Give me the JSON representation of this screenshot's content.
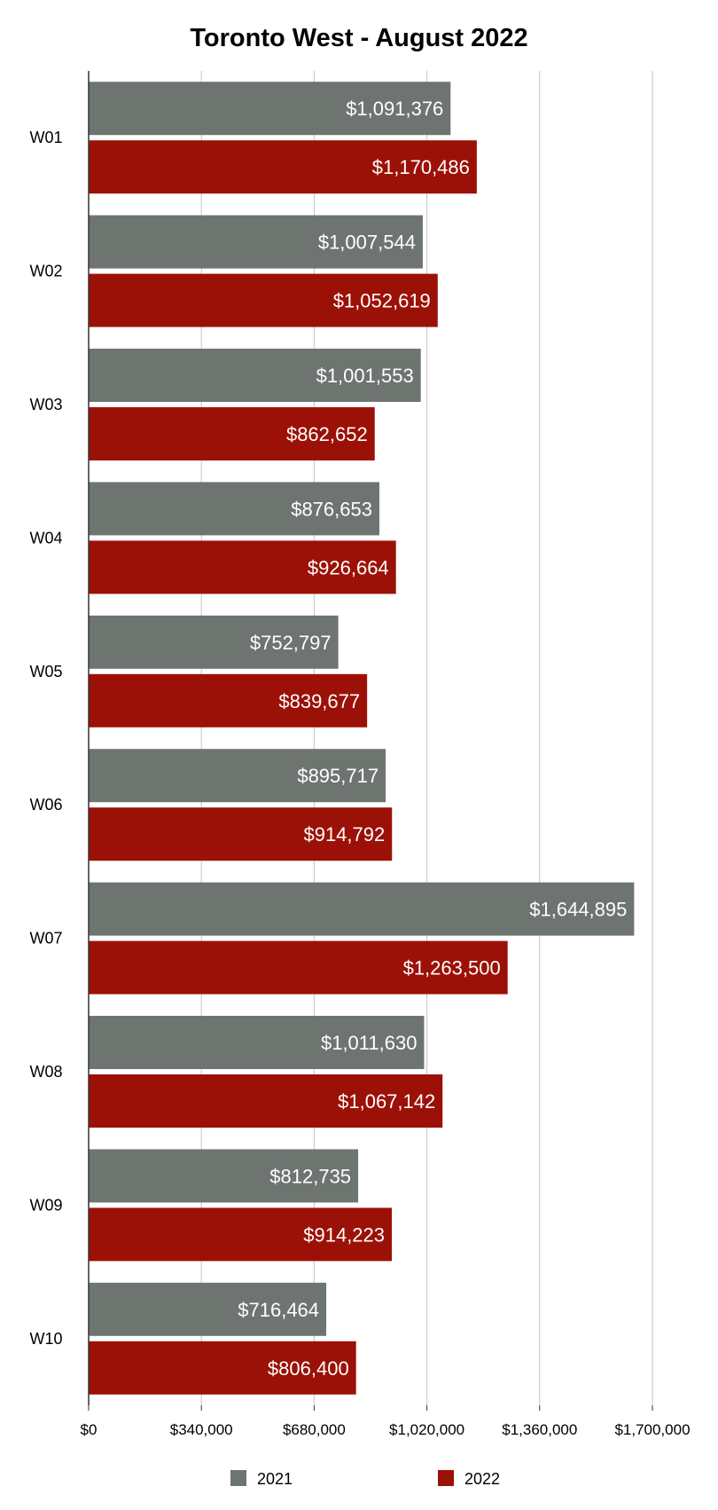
{
  "chart_data": {
    "type": "bar",
    "orientation": "horizontal",
    "title": "Toronto West - August 2022",
    "xlabel": "",
    "ylabel": "",
    "categories": [
      "W01",
      "W02",
      "W03",
      "W04",
      "W05",
      "W06",
      "W07",
      "W08",
      "W09",
      "W10"
    ],
    "series": [
      {
        "name": "2021",
        "color": "#6e7571",
        "values": [
          1091376,
          1007544,
          1001553,
          876653,
          752797,
          895717,
          1644895,
          1011630,
          812735,
          716464
        ],
        "labels": [
          "$1,091,376",
          "$1,007,544",
          "$1,001,553",
          "$876,653",
          "$752,797",
          "$895,717",
          "$1,644,895",
          "$1,011,630",
          "$812,735",
          "$716,464"
        ]
      },
      {
        "name": "2022",
        "color": "#9c1107",
        "values": [
          1170486,
          1052619,
          862652,
          926664,
          839677,
          914792,
          1263500,
          1067142,
          914223,
          806400
        ],
        "labels": [
          "$1,170,486",
          "$1,052,619",
          "$862,652",
          "$926,664",
          "$839,677",
          "$914,792",
          "$1,263,500",
          "$1,067,142",
          "$914,223",
          "$806,400"
        ]
      }
    ],
    "xlim": [
      0,
      1700000
    ],
    "xticks": [
      0,
      340000,
      680000,
      1020000,
      1360000,
      1700000
    ],
    "xtick_labels": [
      "$0",
      "$340,000",
      "$680,000",
      "$1,020,000",
      "$1,360,000",
      "$1,700,000"
    ],
    "grid": true,
    "legend_position": "bottom"
  }
}
